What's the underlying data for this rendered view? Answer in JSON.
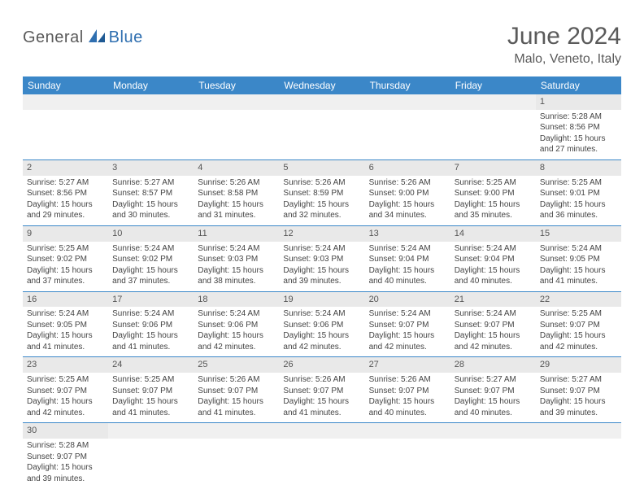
{
  "logo": {
    "part1": "General",
    "part2": "Blue"
  },
  "title": "June 2024",
  "location": "Malo, Veneto, Italy",
  "colors": {
    "header_bg": "#3b87c8",
    "header_text": "#ffffff",
    "daynum_bg": "#e9e9e9",
    "row_border": "#3b87c8",
    "title_color": "#5a5a5a",
    "logo_blue": "#2f6fb0"
  },
  "weekdays": [
    "Sunday",
    "Monday",
    "Tuesday",
    "Wednesday",
    "Thursday",
    "Friday",
    "Saturday"
  ],
  "weeks": [
    [
      null,
      null,
      null,
      null,
      null,
      null,
      {
        "n": "1",
        "sr": "5:28 AM",
        "ss": "8:56 PM",
        "dl": "15 hours and 27 minutes."
      }
    ],
    [
      {
        "n": "2",
        "sr": "5:27 AM",
        "ss": "8:56 PM",
        "dl": "15 hours and 29 minutes."
      },
      {
        "n": "3",
        "sr": "5:27 AM",
        "ss": "8:57 PM",
        "dl": "15 hours and 30 minutes."
      },
      {
        "n": "4",
        "sr": "5:26 AM",
        "ss": "8:58 PM",
        "dl": "15 hours and 31 minutes."
      },
      {
        "n": "5",
        "sr": "5:26 AM",
        "ss": "8:59 PM",
        "dl": "15 hours and 32 minutes."
      },
      {
        "n": "6",
        "sr": "5:26 AM",
        "ss": "9:00 PM",
        "dl": "15 hours and 34 minutes."
      },
      {
        "n": "7",
        "sr": "5:25 AM",
        "ss": "9:00 PM",
        "dl": "15 hours and 35 minutes."
      },
      {
        "n": "8",
        "sr": "5:25 AM",
        "ss": "9:01 PM",
        "dl": "15 hours and 36 minutes."
      }
    ],
    [
      {
        "n": "9",
        "sr": "5:25 AM",
        "ss": "9:02 PM",
        "dl": "15 hours and 37 minutes."
      },
      {
        "n": "10",
        "sr": "5:24 AM",
        "ss": "9:02 PM",
        "dl": "15 hours and 37 minutes."
      },
      {
        "n": "11",
        "sr": "5:24 AM",
        "ss": "9:03 PM",
        "dl": "15 hours and 38 minutes."
      },
      {
        "n": "12",
        "sr": "5:24 AM",
        "ss": "9:03 PM",
        "dl": "15 hours and 39 minutes."
      },
      {
        "n": "13",
        "sr": "5:24 AM",
        "ss": "9:04 PM",
        "dl": "15 hours and 40 minutes."
      },
      {
        "n": "14",
        "sr": "5:24 AM",
        "ss": "9:04 PM",
        "dl": "15 hours and 40 minutes."
      },
      {
        "n": "15",
        "sr": "5:24 AM",
        "ss": "9:05 PM",
        "dl": "15 hours and 41 minutes."
      }
    ],
    [
      {
        "n": "16",
        "sr": "5:24 AM",
        "ss": "9:05 PM",
        "dl": "15 hours and 41 minutes."
      },
      {
        "n": "17",
        "sr": "5:24 AM",
        "ss": "9:06 PM",
        "dl": "15 hours and 41 minutes."
      },
      {
        "n": "18",
        "sr": "5:24 AM",
        "ss": "9:06 PM",
        "dl": "15 hours and 42 minutes."
      },
      {
        "n": "19",
        "sr": "5:24 AM",
        "ss": "9:06 PM",
        "dl": "15 hours and 42 minutes."
      },
      {
        "n": "20",
        "sr": "5:24 AM",
        "ss": "9:07 PM",
        "dl": "15 hours and 42 minutes."
      },
      {
        "n": "21",
        "sr": "5:24 AM",
        "ss": "9:07 PM",
        "dl": "15 hours and 42 minutes."
      },
      {
        "n": "22",
        "sr": "5:25 AM",
        "ss": "9:07 PM",
        "dl": "15 hours and 42 minutes."
      }
    ],
    [
      {
        "n": "23",
        "sr": "5:25 AM",
        "ss": "9:07 PM",
        "dl": "15 hours and 42 minutes."
      },
      {
        "n": "24",
        "sr": "5:25 AM",
        "ss": "9:07 PM",
        "dl": "15 hours and 41 minutes."
      },
      {
        "n": "25",
        "sr": "5:26 AM",
        "ss": "9:07 PM",
        "dl": "15 hours and 41 minutes."
      },
      {
        "n": "26",
        "sr": "5:26 AM",
        "ss": "9:07 PM",
        "dl": "15 hours and 41 minutes."
      },
      {
        "n": "27",
        "sr": "5:26 AM",
        "ss": "9:07 PM",
        "dl": "15 hours and 40 minutes."
      },
      {
        "n": "28",
        "sr": "5:27 AM",
        "ss": "9:07 PM",
        "dl": "15 hours and 40 minutes."
      },
      {
        "n": "29",
        "sr": "5:27 AM",
        "ss": "9:07 PM",
        "dl": "15 hours and 39 minutes."
      }
    ],
    [
      {
        "n": "30",
        "sr": "5:28 AM",
        "ss": "9:07 PM",
        "dl": "15 hours and 39 minutes."
      },
      null,
      null,
      null,
      null,
      null,
      null
    ]
  ],
  "labels": {
    "sunrise": "Sunrise:",
    "sunset": "Sunset:",
    "daylight": "Daylight:"
  }
}
